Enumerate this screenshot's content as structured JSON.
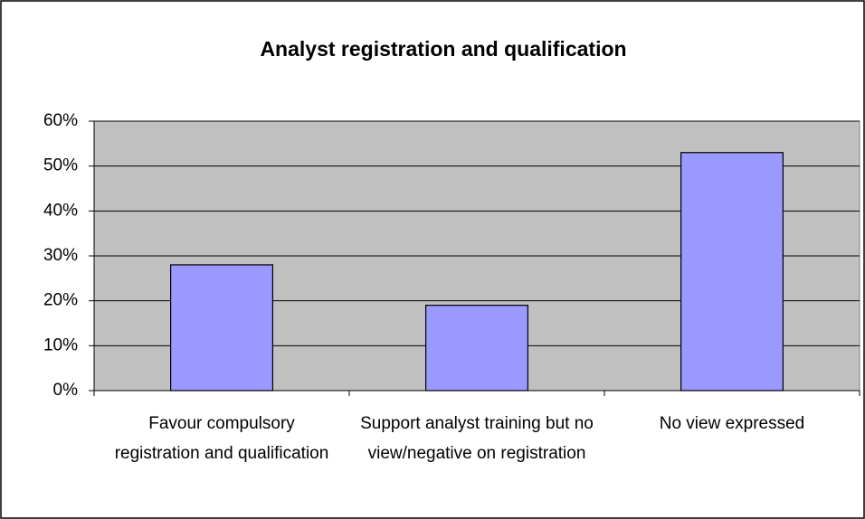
{
  "chart_data": {
    "type": "bar",
    "title": "Analyst registration and qualification",
    "categories": [
      "Favour compulsory registration and qualification",
      "Support analyst training but no view/negative on registration",
      "No view expressed"
    ],
    "values": [
      28,
      19,
      53
    ],
    "color": "#9999ff",
    "ylim": [
      0,
      60
    ],
    "yticks": [
      {
        "value": 0,
        "label": "0%"
      },
      {
        "value": 10,
        "label": "10%"
      },
      {
        "value": 20,
        "label": "20%"
      },
      {
        "value": 30,
        "label": "30%"
      },
      {
        "value": 40,
        "label": "40%"
      },
      {
        "value": 50,
        "label": "50%"
      },
      {
        "value": 60,
        "label": "60%"
      }
    ],
    "grid": true
  }
}
